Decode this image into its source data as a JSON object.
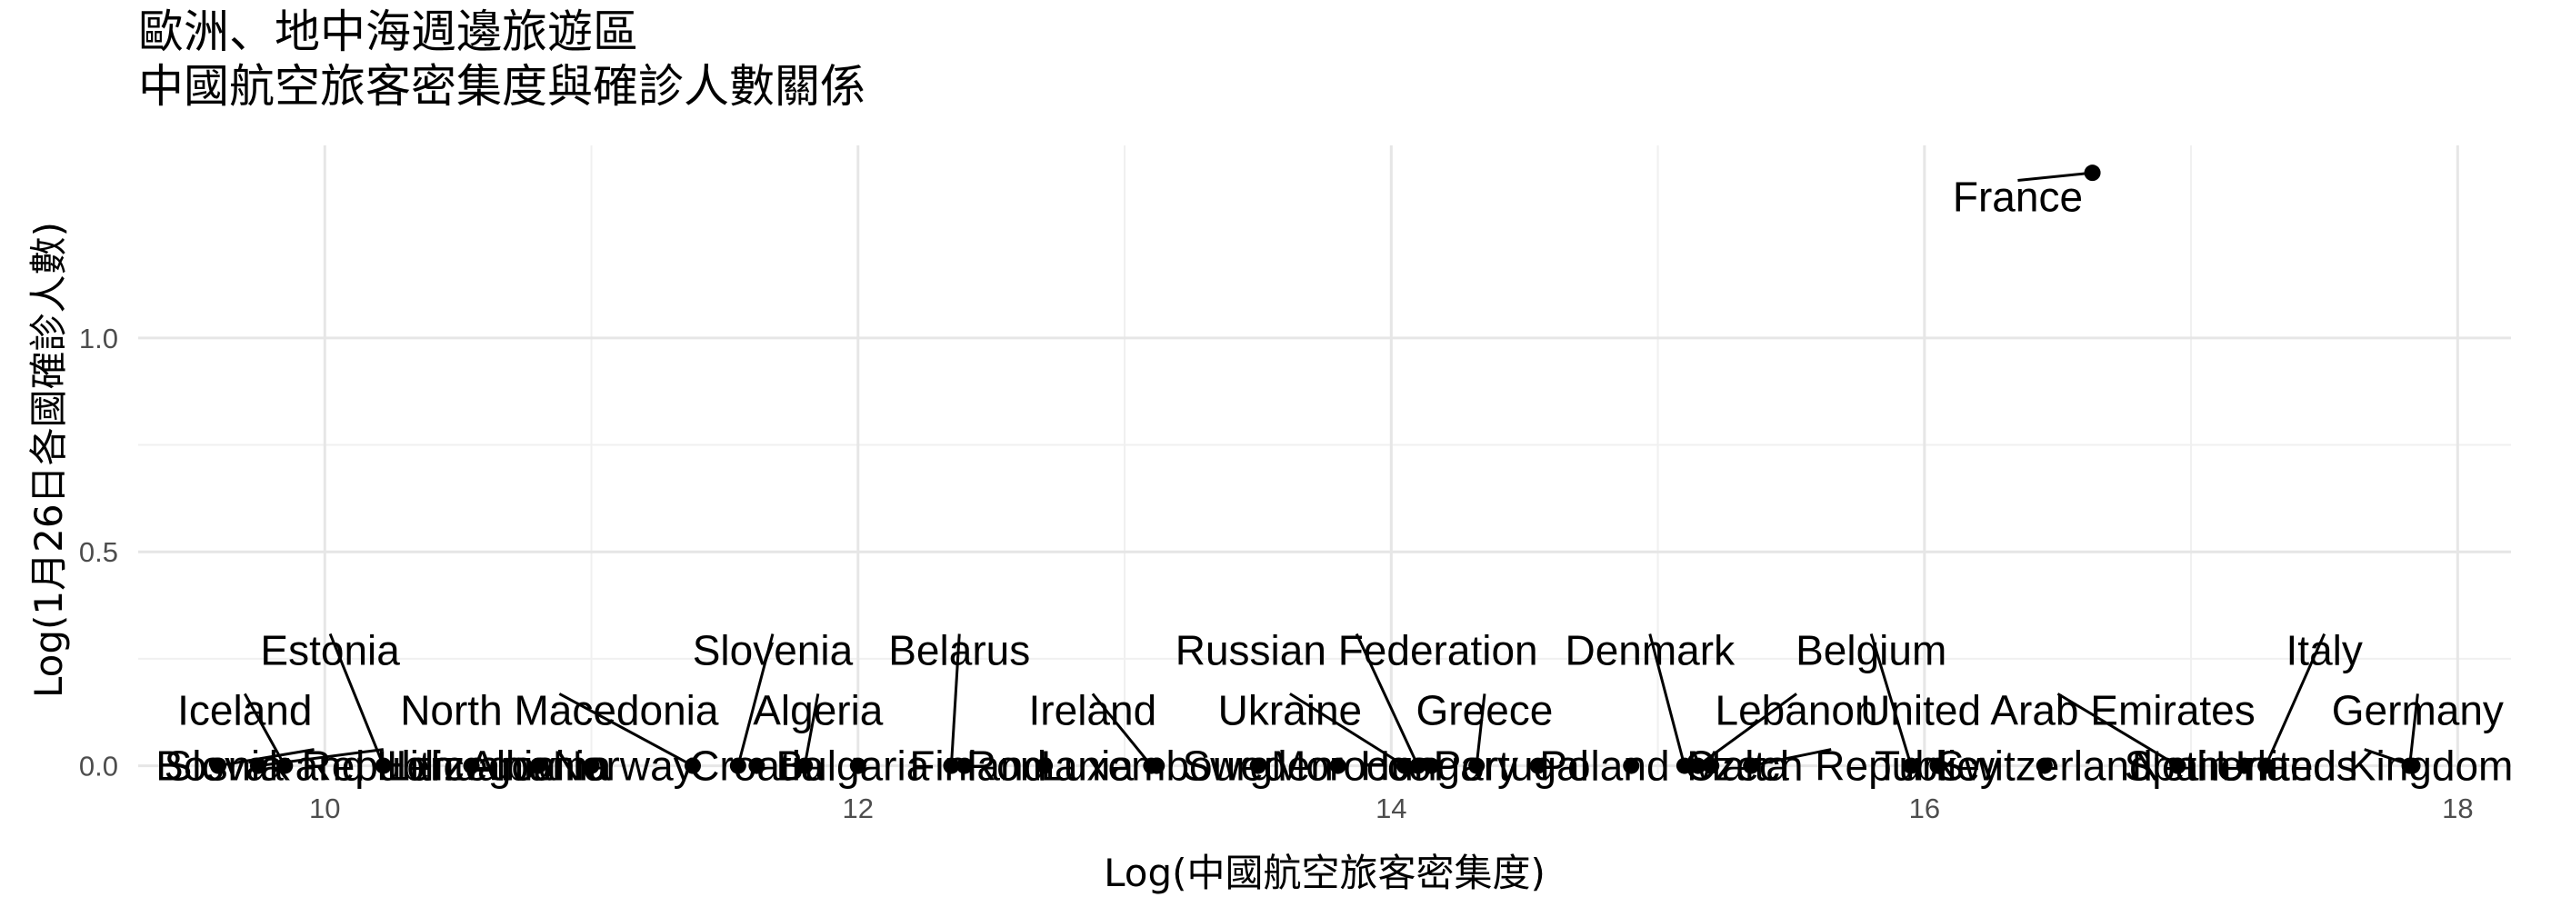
{
  "chart_data": {
    "type": "scatter",
    "title": "歐洲、地中海週邊旅遊區",
    "subtitle": "中國航空旅客密集度與確診人數關係",
    "xlabel": "Log(中國航空旅客密集度)",
    "ylabel": "Log(1月26日各國確診人數)",
    "xlim": [
      9.3,
      18.2
    ],
    "ylim": [
      -0.02,
      1.45
    ],
    "x_ticks": [
      10,
      12,
      14,
      16,
      18
    ],
    "y_ticks": [
      0.0,
      0.5,
      1.0
    ],
    "x_tick_labels": [
      "10",
      "12",
      "14",
      "16",
      "18"
    ],
    "y_tick_labels": [
      "0.0",
      "0.5",
      "1.0"
    ],
    "grid": true,
    "points": [
      {
        "name": "Iceland",
        "x": 9.85,
        "y": 0.0,
        "label_x": 9.7,
        "label_y": 0.13
      },
      {
        "name": "Slovak Republic",
        "x": 9.6,
        "y": 0.0,
        "label_x": 9.96,
        "label_y": 0.0
      },
      {
        "name": "Bosnia and Herzegovina",
        "x": 9.75,
        "y": 0.0,
        "label_x": 10.22,
        "label_y": 0.0
      },
      {
        "name": "Estonia",
        "x": 10.22,
        "y": 0.0,
        "label_x": 10.02,
        "label_y": 0.27
      },
      {
        "name": "Lithuania",
        "x": 10.55,
        "y": 0.0,
        "label_x": 10.55,
        "label_y": 0.0
      },
      {
        "name": "Albania",
        "x": 10.8,
        "y": 0.0,
        "label_x": 10.8,
        "label_y": 0.0
      },
      {
        "name": "North Macedonia",
        "x": 11.38,
        "y": 0.0,
        "label_x": 10.88,
        "label_y": 0.13
      },
      {
        "name": "Norway",
        "x": 11.0,
        "y": 0.0,
        "label_x": 11.12,
        "label_y": 0.0
      },
      {
        "name": "Slovenia",
        "x": 11.55,
        "y": 0.0,
        "label_x": 11.68,
        "label_y": 0.27
      },
      {
        "name": "Croatia",
        "x": 11.62,
        "y": 0.0,
        "label_x": 11.62,
        "label_y": 0.0
      },
      {
        "name": "Algeria",
        "x": 11.8,
        "y": 0.0,
        "label_x": 11.85,
        "label_y": 0.13
      },
      {
        "name": "Bulgaria",
        "x": 12.0,
        "y": 0.0,
        "label_x": 11.98,
        "label_y": 0.0
      },
      {
        "name": "Belarus",
        "x": 12.35,
        "y": 0.0,
        "label_x": 12.38,
        "label_y": 0.27
      },
      {
        "name": "Finland",
        "x": 12.4,
        "y": 0.0,
        "label_x": 12.45,
        "label_y": 0.0
      },
      {
        "name": "Romania",
        "x": 12.7,
        "y": 0.0,
        "label_x": 12.72,
        "label_y": 0.0
      },
      {
        "name": "Ireland",
        "x": 13.1,
        "y": 0.0,
        "label_x": 12.88,
        "label_y": 0.13
      },
      {
        "name": "Luxembourg",
        "x": 13.12,
        "y": 0.0,
        "label_x": 13.12,
        "label_y": 0.0
      },
      {
        "name": "Sweden",
        "x": 13.5,
        "y": 0.0,
        "label_x": 13.5,
        "label_y": 0.0
      },
      {
        "name": "Russian Federation",
        "x": 14.1,
        "y": 0.0,
        "label_x": 13.87,
        "label_y": 0.27
      },
      {
        "name": "Ukraine",
        "x": 14.05,
        "y": 0.0,
        "label_x": 13.62,
        "label_y": 0.13
      },
      {
        "name": "Morocco",
        "x": 13.8,
        "y": 0.0,
        "label_x": 13.85,
        "label_y": 0.0
      },
      {
        "name": "Greece",
        "x": 14.32,
        "y": 0.0,
        "label_x": 14.35,
        "label_y": 0.13
      },
      {
        "name": "Hungary",
        "x": 14.15,
        "y": 0.0,
        "label_x": 14.18,
        "label_y": 0.0
      },
      {
        "name": "Portugal",
        "x": 14.55,
        "y": 0.0,
        "label_x": 14.45,
        "label_y": 0.0
      },
      {
        "name": "Poland",
        "x": 14.9,
        "y": 0.0,
        "label_x": 14.8,
        "label_y": 0.0
      },
      {
        "name": "Denmark",
        "x": 15.1,
        "y": 0.0,
        "label_x": 14.97,
        "label_y": 0.27
      },
      {
        "name": "Lebanon",
        "x": 15.15,
        "y": 0.0,
        "label_x": 15.52,
        "label_y": 0.13
      },
      {
        "name": "Malta",
        "x": 15.2,
        "y": 0.0,
        "label_x": 15.3,
        "label_y": 0.0
      },
      {
        "name": "Czech Republic",
        "x": 15.35,
        "y": 0.0,
        "label_x": 15.65,
        "label_y": 0.0
      },
      {
        "name": "Belgium",
        "x": 15.95,
        "y": 0.0,
        "label_x": 15.8,
        "label_y": 0.27
      },
      {
        "name": "Turkey",
        "x": 16.05,
        "y": 0.0,
        "label_x": 16.05,
        "label_y": 0.0
      },
      {
        "name": "Switzerland",
        "x": 16.45,
        "y": 0.0,
        "label_x": 16.45,
        "label_y": 0.0
      },
      {
        "name": "United Arab Emirates",
        "x": 16.95,
        "y": 0.0,
        "label_x": 16.5,
        "label_y": 0.13
      },
      {
        "name": "Spain",
        "x": 16.95,
        "y": 0.0,
        "label_x": 16.95,
        "label_y": 0.0
      },
      {
        "name": "Netherlands",
        "x": 17.2,
        "y": 0.0,
        "label_x": 17.2,
        "label_y": 0.0
      },
      {
        "name": "Italy",
        "x": 17.28,
        "y": 0.0,
        "label_x": 17.5,
        "label_y": 0.27
      },
      {
        "name": "Germany",
        "x": 17.82,
        "y": 0.0,
        "label_x": 17.85,
        "label_y": 0.13
      },
      {
        "name": "United Kingdom",
        "x": 17.83,
        "y": 0.0,
        "label_x": 17.65,
        "label_y": 0.0
      },
      {
        "name": "France",
        "x": 16.63,
        "y": 1.386,
        "label_x": 16.35,
        "label_y": 1.33
      }
    ]
  }
}
